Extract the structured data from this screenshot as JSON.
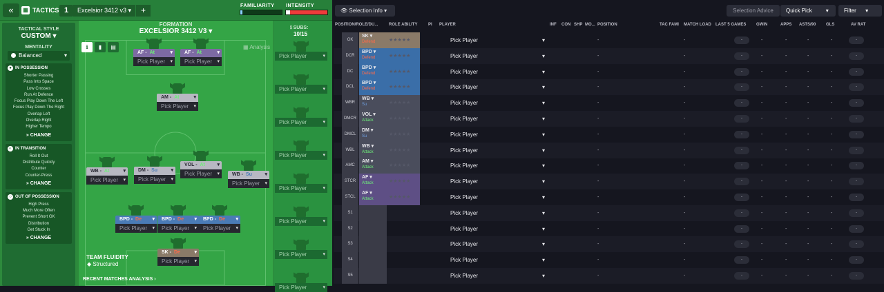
{
  "topbar": {
    "tactics_label": "TACTICS",
    "tactic_number": "1",
    "tactic_name": "Excelsior 3412 v3",
    "add_label": "+",
    "familiarity_label": "FAMILIARITY",
    "intensity_label": "INTENSITY",
    "familiarity_value": 0.05,
    "intensity_value": 0.1
  },
  "sidebar": {
    "tactical_style_label": "TACTICAL STYLE",
    "tactical_style_value": "CUSTOM",
    "mentality_label": "MENTALITY",
    "mentality_value": "Balanced",
    "in_possession": {
      "title": "IN POSSESSION",
      "items": [
        "Shorter Passing",
        "Pass Into Space",
        "Low Crosses",
        "Run At Defence",
        "Focus Play Down The Left",
        "Focus Play Down The Right",
        "Overlap Left",
        "Overlap Right",
        "Higher Tempo"
      ],
      "change": "CHANGE"
    },
    "in_transition": {
      "title": "IN TRANSITION",
      "items": [
        "Roll It Out",
        "Distribute Quickly",
        "Counter",
        "Counter-Press"
      ],
      "change": "CHANGE"
    },
    "out_of_possession": {
      "title": "OUT OF POSSESSION",
      "items": [
        "High Press",
        "Much More Often",
        "Prevent Short GK",
        "Distribution",
        "Get Stuck In"
      ],
      "change": "CHANGE"
    }
  },
  "pitch": {
    "formation_label": "FORMATION",
    "formation_name": "EXCELSIOR 3412 V3",
    "analysis_label": "Analysis",
    "team_fluidity_label": "TEAM FLUIDITY",
    "team_fluidity_value": "Structured",
    "recent_matches": "RECENT MATCHES ANALYSIS",
    "pick_label": "Pick Player",
    "players": [
      {
        "role": "AF",
        "duty": "At",
        "color": "purple",
        "dcls": "at"
      },
      {
        "role": "AF",
        "duty": "At",
        "color": "purple",
        "dcls": "at"
      },
      {
        "role": "AM",
        "duty": "At",
        "color": "gray",
        "dcls": "at"
      },
      {
        "role": "WB",
        "duty": "At",
        "color": "gray",
        "dcls": "at"
      },
      {
        "role": "DM",
        "duty": "Su",
        "color": "gray",
        "dcls": "su"
      },
      {
        "role": "VOL",
        "duty": "At",
        "color": "gray",
        "dcls": "at"
      },
      {
        "role": "WB",
        "duty": "Su",
        "color": "gray",
        "dcls": "su"
      },
      {
        "role": "BPD",
        "duty": "De",
        "color": "blue",
        "dcls": "de"
      },
      {
        "role": "BPD",
        "duty": "De",
        "color": "blue",
        "dcls": "de"
      },
      {
        "role": "BPD",
        "duty": "De",
        "color": "blue",
        "dcls": "de"
      },
      {
        "role": "SK",
        "duty": "De",
        "color": "brown",
        "dcls": "de"
      }
    ]
  },
  "subs": {
    "label": "SUBS:",
    "count": "10/15",
    "pick_label": "Pick Player"
  },
  "right": {
    "selection_info": "Selection Info",
    "selection_advice": "Selection Advice",
    "quick_pick": "Quick Pick",
    "filter": "Filter",
    "headers": [
      "POSITION/ROLE/DU...",
      "ROLE ABILITY",
      "PI",
      "PLAYER",
      "INF",
      "CON",
      "SHP",
      "MO...",
      "POSITION",
      "TAC FAMI",
      "MATCH LOAD",
      "LAST 5 GAMES",
      "GWIN",
      "APPS",
      "ASTS/90",
      "GLS",
      "AV RAT"
    ],
    "pick_player": "Pick Player",
    "dash": "-",
    "rows": [
      {
        "pos": "GK",
        "role": "SK",
        "duty": "Defend",
        "rc": "#8a7a68",
        "dc": "#ff6b4a"
      },
      {
        "pos": "DCR",
        "role": "BPD",
        "duty": "Defend",
        "rc": "#3a6ea8",
        "dc": "#ff6b4a"
      },
      {
        "pos": "DC",
        "role": "BPD",
        "duty": "Defend",
        "rc": "#3a6ea8",
        "dc": "#ff6b4a"
      },
      {
        "pos": "DCL",
        "role": "BPD",
        "duty": "Defend",
        "rc": "#3a6ea8",
        "dc": "#ff6b4a"
      },
      {
        "pos": "WBR",
        "role": "WB",
        "duty": "Su",
        "rc": "#4a4d5c",
        "dc": "#6f9fe0"
      },
      {
        "pos": "DMCR",
        "role": "VOL",
        "duty": "Attack",
        "rc": "#4a4d5c",
        "dc": "#6ef07a"
      },
      {
        "pos": "DMCL",
        "role": "DM",
        "duty": "Su",
        "rc": "#4a4d5c",
        "dc": "#6f9fe0"
      },
      {
        "pos": "WBL",
        "role": "WB",
        "duty": "Attack",
        "rc": "#4a4d5c",
        "dc": "#6ef07a"
      },
      {
        "pos": "AMC",
        "role": "AM",
        "duty": "Attack",
        "rc": "#4a4d5c",
        "dc": "#6ef07a"
      },
      {
        "pos": "STCR",
        "role": "AF",
        "duty": "Attack",
        "rc": "#5e4f85",
        "dc": "#6ef07a"
      },
      {
        "pos": "STCL",
        "role": "AF",
        "duty": "Attack",
        "rc": "#5e4f85",
        "dc": "#6ef07a"
      },
      {
        "pos": "S1",
        "role": "",
        "duty": "",
        "rc": "",
        "dc": ""
      },
      {
        "pos": "S2",
        "role": "",
        "duty": "",
        "rc": "",
        "dc": ""
      },
      {
        "pos": "S3",
        "role": "",
        "duty": "",
        "rc": "",
        "dc": ""
      },
      {
        "pos": "S4",
        "role": "",
        "duty": "",
        "rc": "",
        "dc": ""
      },
      {
        "pos": "S5",
        "role": "",
        "duty": "",
        "rc": "",
        "dc": ""
      }
    ]
  }
}
